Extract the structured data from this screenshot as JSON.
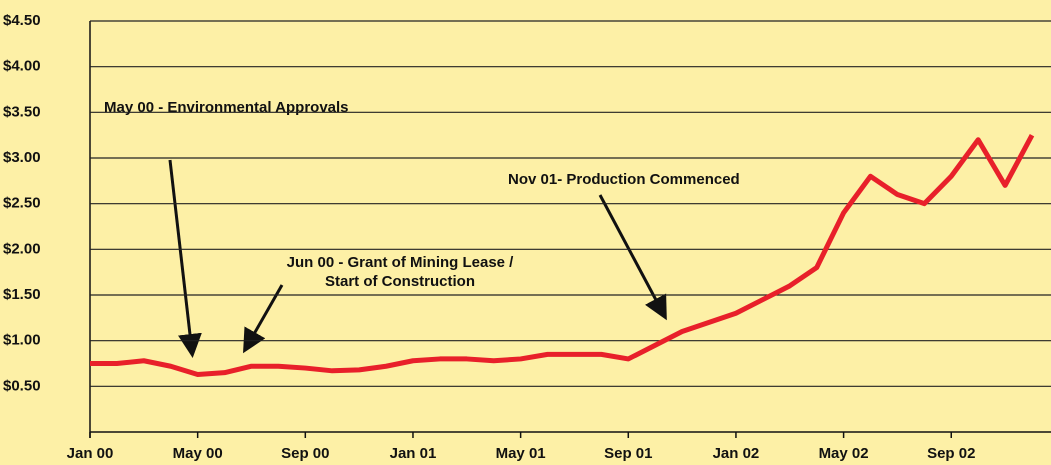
{
  "chart_data": {
    "type": "line",
    "x": [
      "2000-01",
      "2000-02",
      "2000-03",
      "2000-04",
      "2000-05",
      "2000-06",
      "2000-07",
      "2000-08",
      "2000-09",
      "2000-10",
      "2000-11",
      "2000-12",
      "2001-01",
      "2001-02",
      "2001-03",
      "2001-04",
      "2001-05",
      "2001-06",
      "2001-07",
      "2001-08",
      "2001-09",
      "2001-10",
      "2001-11",
      "2001-12",
      "2002-01",
      "2002-02",
      "2002-03",
      "2002-04",
      "2002-05",
      "2002-06",
      "2002-07",
      "2002-08",
      "2002-09",
      "2002-10",
      "2002-11",
      "2002-12"
    ],
    "series": [
      {
        "color": "#e8202a",
        "values": [
          0.75,
          0.75,
          0.78,
          0.72,
          0.63,
          0.65,
          0.72,
          0.72,
          0.7,
          0.67,
          0.68,
          0.72,
          0.78,
          0.8,
          0.8,
          0.78,
          0.8,
          0.85,
          0.85,
          0.85,
          0.8,
          0.95,
          1.1,
          1.2,
          1.3,
          1.45,
          1.6,
          1.8,
          2.4,
          2.8,
          2.6,
          2.5,
          2.8,
          3.2,
          2.7,
          3.25
        ]
      }
    ],
    "xlim": [
      "2000-01",
      "2002-12"
    ],
    "xticks": [
      {
        "value": "2000-01",
        "label": "Jan 00"
      },
      {
        "value": "2000-05",
        "label": "May 00"
      },
      {
        "value": "2000-09",
        "label": "Sep 00"
      },
      {
        "value": "2001-01",
        "label": "Jan 01"
      },
      {
        "value": "2001-05",
        "label": "May 01"
      },
      {
        "value": "2001-09",
        "label": "Sep 01"
      },
      {
        "value": "2002-01",
        "label": "Jan 02"
      },
      {
        "value": "2002-05",
        "label": "May 02"
      },
      {
        "value": "2002-09",
        "label": "Sep 02"
      }
    ],
    "ylim": [
      0,
      4.5
    ],
    "yticks": [
      {
        "value": 0.5,
        "label": "$0.50"
      },
      {
        "value": 1,
        "label": "$1.00"
      },
      {
        "value": 1.5,
        "label": "$1.50"
      },
      {
        "value": 2,
        "label": "$2.00"
      },
      {
        "value": 2.5,
        "label": "$2.50"
      },
      {
        "value": 3,
        "label": "$3.00"
      },
      {
        "value": 3.5,
        "label": "$3.50"
      },
      {
        "value": 4,
        "label": "$4.00"
      },
      {
        "value": 4.5,
        "label": "$4.50"
      }
    ],
    "grid": true,
    "annotations": [
      "May 00 - Environmental Approvals",
      "Jun 00 - Grant of Mining Lease /",
      "Start of Construction",
      "Nov 01- Production Commenced"
    ]
  }
}
